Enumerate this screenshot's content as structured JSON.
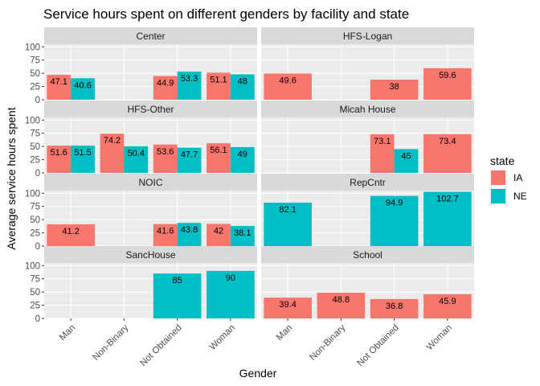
{
  "chart_data": {
    "type": "bar",
    "title": "Service hours spent on different genders by facility and state",
    "xlabel": "Gender",
    "ylabel": "Average service hours spent",
    "ylim": [
      0,
      105
    ],
    "yticks": [
      0,
      25,
      50,
      75,
      100
    ],
    "categories": [
      "Man",
      "Non-Binary",
      "Not Obtained",
      "Woman"
    ],
    "legend": {
      "title": "state",
      "position": "right",
      "items": [
        {
          "name": "IA",
          "color": "#F8766D"
        },
        {
          "name": "NE",
          "color": "#00BFC4"
        }
      ]
    },
    "facets": [
      {
        "name": "Center",
        "bars": [
          {
            "category": "Man",
            "state": "IA",
            "value": 47.1,
            "label": "47.1"
          },
          {
            "category": "Man",
            "state": "NE",
            "value": 40.6,
            "label": "40.6"
          },
          {
            "category": "Not Obtained",
            "state": "IA",
            "value": 44.9,
            "label": "44.9"
          },
          {
            "category": "Not Obtained",
            "state": "NE",
            "value": 53.3,
            "label": "53.3"
          },
          {
            "category": "Woman",
            "state": "IA",
            "value": 51.1,
            "label": "51.1"
          },
          {
            "category": "Woman",
            "state": "NE",
            "value": 48,
            "label": "48"
          }
        ]
      },
      {
        "name": "HFS-Logan",
        "bars": [
          {
            "category": "Man",
            "state": "IA",
            "value": 49.6,
            "label": "49.6"
          },
          {
            "category": "Not Obtained",
            "state": "IA",
            "value": 38,
            "label": "38"
          },
          {
            "category": "Woman",
            "state": "IA",
            "value": 59.6,
            "label": "59.6"
          }
        ]
      },
      {
        "name": "HFS-Other",
        "bars": [
          {
            "category": "Man",
            "state": "IA",
            "value": 51.6,
            "label": "51.6"
          },
          {
            "category": "Man",
            "state": "NE",
            "value": 51.5,
            "label": "51.5"
          },
          {
            "category": "Non-Binary",
            "state": "IA",
            "value": 74.2,
            "label": "74.2"
          },
          {
            "category": "Non-Binary",
            "state": "NE",
            "value": 50.4,
            "label": "50.4"
          },
          {
            "category": "Not Obtained",
            "state": "IA",
            "value": 53.6,
            "label": "53.6"
          },
          {
            "category": "Not Obtained",
            "state": "NE",
            "value": 47.7,
            "label": "47.7"
          },
          {
            "category": "Woman",
            "state": "IA",
            "value": 56.1,
            "label": "56.1"
          },
          {
            "category": "Woman",
            "state": "NE",
            "value": 49,
            "label": "49"
          }
        ]
      },
      {
        "name": "Micah House",
        "bars": [
          {
            "category": "Not Obtained",
            "state": "IA",
            "value": 73.1,
            "label": "73.1"
          },
          {
            "category": "Not Obtained",
            "state": "NE",
            "value": 45,
            "label": "45"
          },
          {
            "category": "Woman",
            "state": "IA",
            "value": 73.4,
            "label": "73.4"
          }
        ]
      },
      {
        "name": "NOIC",
        "bars": [
          {
            "category": "Man",
            "state": "IA",
            "value": 41.2,
            "label": "41.2"
          },
          {
            "category": "Not Obtained",
            "state": "IA",
            "value": 41.6,
            "label": "41.6"
          },
          {
            "category": "Not Obtained",
            "state": "NE",
            "value": 43.8,
            "label": "43.8"
          },
          {
            "category": "Woman",
            "state": "IA",
            "value": 42,
            "label": "42"
          },
          {
            "category": "Woman",
            "state": "NE",
            "value": 38.1,
            "label": "38.1"
          }
        ]
      },
      {
        "name": "RepCntr",
        "bars": [
          {
            "category": "Man",
            "state": "NE",
            "value": 82.1,
            "label": "82.1"
          },
          {
            "category": "Not Obtained",
            "state": "NE",
            "value": 94.9,
            "label": "94.9"
          },
          {
            "category": "Woman",
            "state": "NE",
            "value": 102.7,
            "label": "102.7"
          }
        ]
      },
      {
        "name": "SancHouse",
        "bars": [
          {
            "category": "Not Obtained",
            "state": "NE",
            "value": 85,
            "label": "85"
          },
          {
            "category": "Woman",
            "state": "NE",
            "value": 90,
            "label": "90"
          }
        ]
      },
      {
        "name": "School",
        "bars": [
          {
            "category": "Man",
            "state": "IA",
            "value": 39.4,
            "label": "39.4"
          },
          {
            "category": "Non-Binary",
            "state": "IA",
            "value": 48.8,
            "label": "48.8"
          },
          {
            "category": "Not Obtained",
            "state": "IA",
            "value": 36.8,
            "label": "36.8"
          },
          {
            "category": "Woman",
            "state": "IA",
            "value": 45.9,
            "label": "45.9"
          }
        ]
      }
    ]
  }
}
